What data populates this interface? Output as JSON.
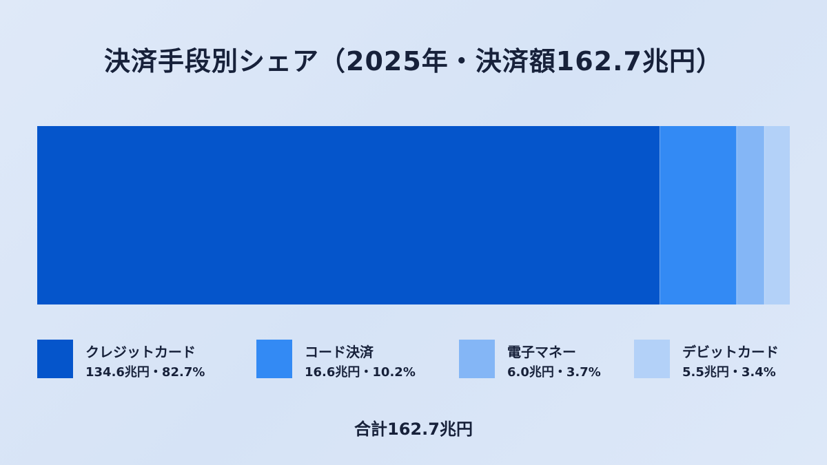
{
  "title": "決済手段別シェア（2025年・決済額162.7兆円）",
  "total_label": "合計162.7兆円",
  "chart_data": {
    "type": "bar",
    "orientation": "horizontal-stacked",
    "title": "決済手段別シェア（2025年・決済額162.7兆円）",
    "unit": "兆円",
    "total": 162.7,
    "legend_position": "bottom",
    "grid": false,
    "segments": [
      {
        "name": "クレジットカード",
        "value": 134.6,
        "share": 82.7,
        "color": "#0555cb",
        "label": "134.6兆円・82.7%"
      },
      {
        "name": "コード決済",
        "value": 16.6,
        "share": 10.2,
        "color": "#338af4",
        "label": "16.6兆円・10.2%"
      },
      {
        "name": "電子マネー",
        "value": 6.0,
        "share": 3.7,
        "color": "#84b6f6",
        "label": "6.0兆円・3.7%"
      },
      {
        "name": "デビットカード",
        "value": 5.5,
        "share": 3.4,
        "color": "#b3d1f8",
        "label": "5.5兆円・3.4%"
      }
    ]
  }
}
